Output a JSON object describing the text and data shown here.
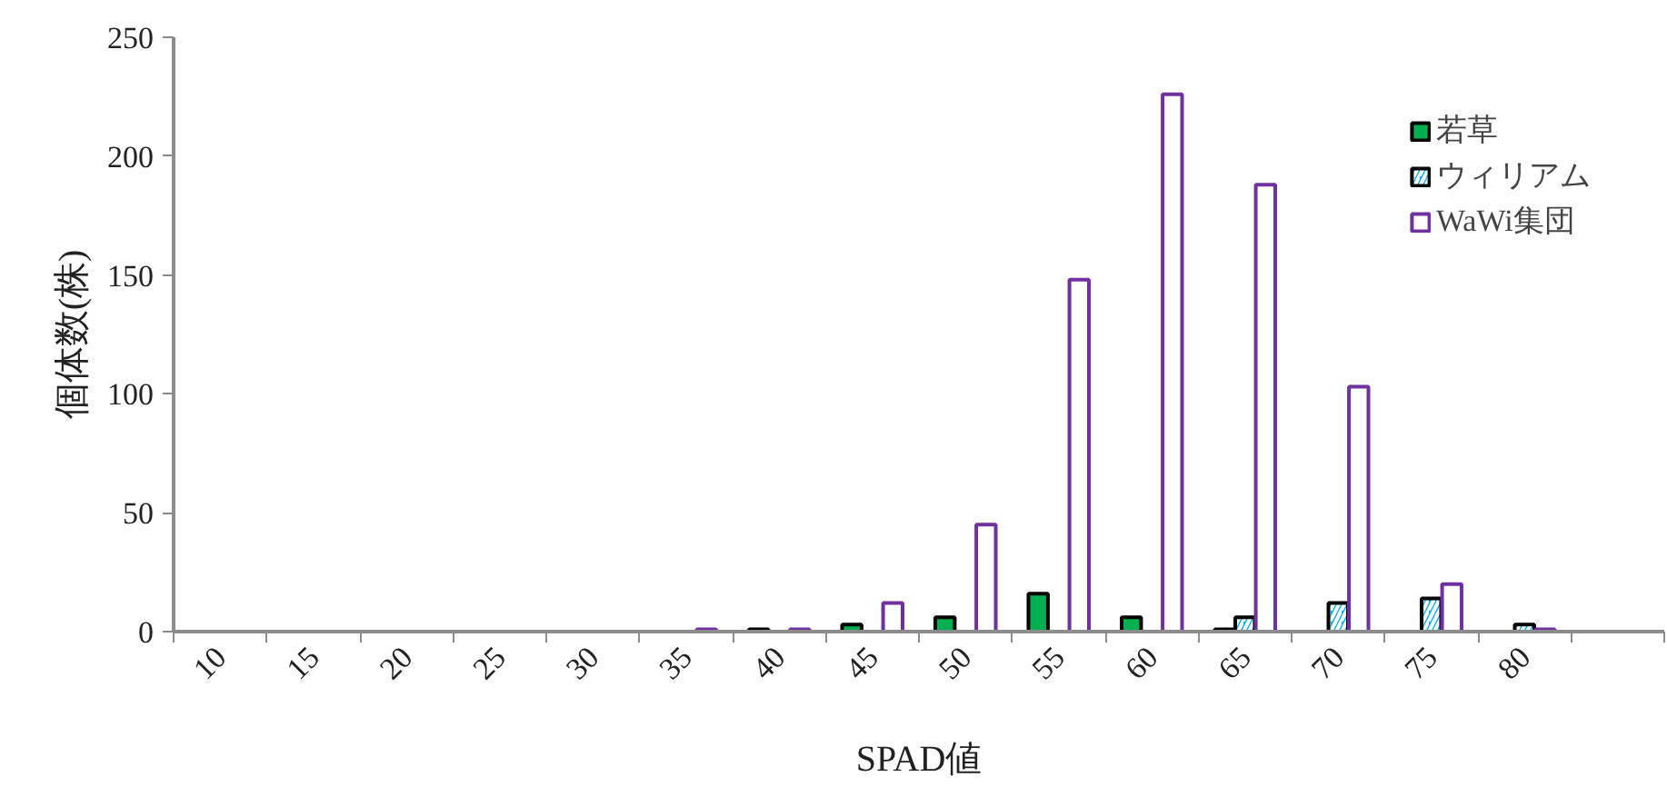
{
  "chart_data": {
    "type": "bar",
    "xlabel": "SPAD値",
    "ylabel": "個体数(株)",
    "categories": [
      "10",
      "15",
      "20",
      "25",
      "30",
      "35",
      "40",
      "45",
      "50",
      "55",
      "60",
      "65",
      "70",
      "75",
      "80",
      null
    ],
    "series": [
      {
        "name": "若草",
        "color": "#00b050",
        "values": [
          null,
          null,
          null,
          null,
          null,
          null,
          1,
          3,
          6,
          16,
          6,
          1,
          null,
          null,
          null,
          null
        ]
      },
      {
        "name": "ウィリアム",
        "color": "#00b0f0",
        "values": [
          null,
          null,
          null,
          null,
          null,
          null,
          null,
          null,
          null,
          null,
          null,
          6,
          12,
          14,
          3,
          null
        ]
      },
      {
        "name": "WaWi集団",
        "color": "#7030a0",
        "values": [
          null,
          null,
          null,
          null,
          null,
          1,
          1,
          12,
          45,
          148,
          226,
          188,
          103,
          20,
          1,
          null
        ]
      }
    ],
    "ylim": [
      0,
      250
    ],
    "yticks": [
      0,
      50,
      100,
      150,
      200,
      250
    ],
    "grid": false,
    "legend": "top right"
  }
}
